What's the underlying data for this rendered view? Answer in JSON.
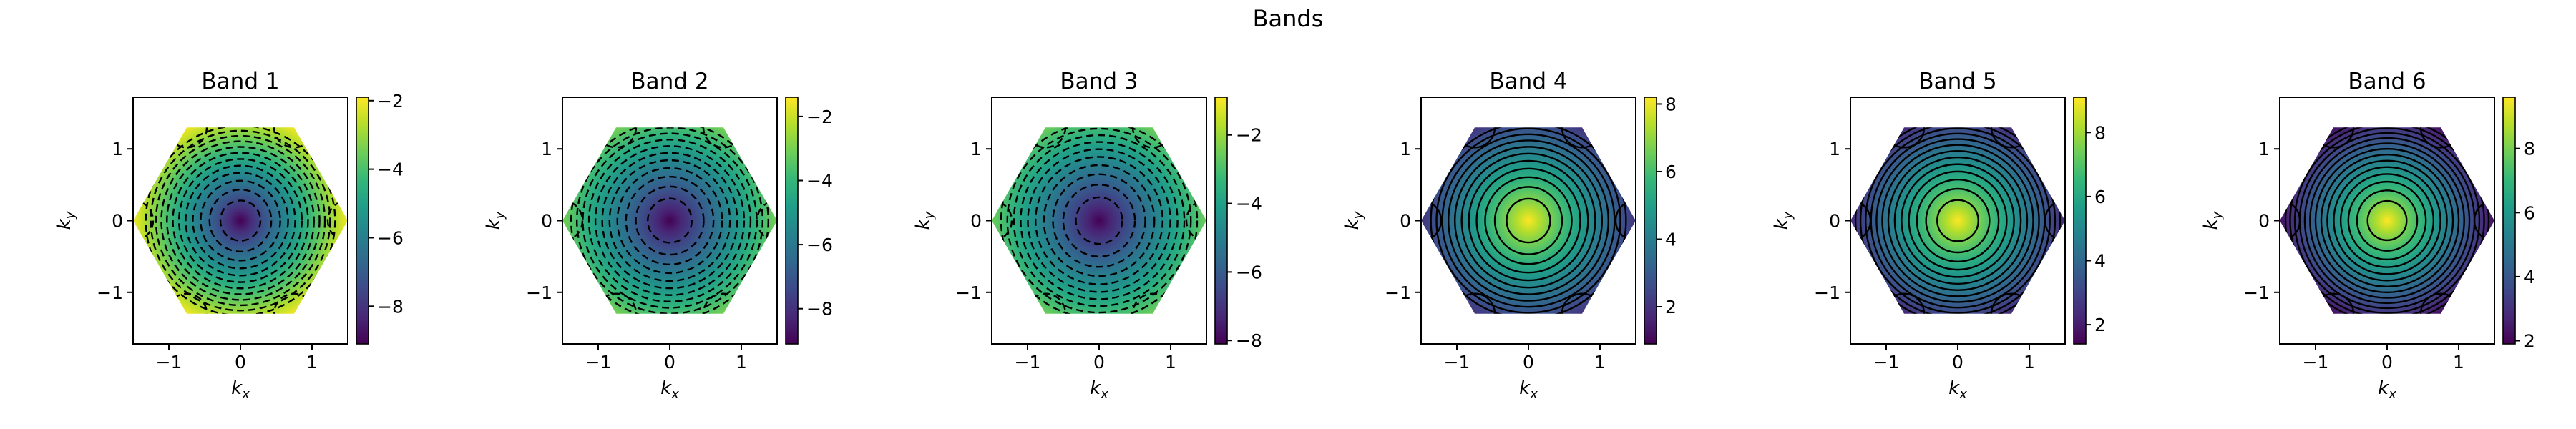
{
  "figure_title": "Bands",
  "colormap": [
    "#440154",
    "#482878",
    "#3e4989",
    "#31688e",
    "#26828e",
    "#1f9e89",
    "#35b779",
    "#6ece58",
    "#b5de2b",
    "#fde725"
  ],
  "chart_data": [
    {
      "type": "heatmap",
      "title": "Band 1",
      "xlabel": "k_x",
      "ylabel": "k_y",
      "xlim": [
        -1.5,
        1.5
      ],
      "ylim": [
        -1.72,
        1.72
      ],
      "xticks": [
        -1,
        0,
        1
      ],
      "yticks": [
        -1,
        0,
        1
      ],
      "clim": [
        -9.1,
        -1.9
      ],
      "cbar_ticks": [
        -2,
        -4,
        -6,
        -8
      ],
      "value_center": -9.1,
      "value_edge": -2.0,
      "contour_levels": [
        -8.6,
        -8.1,
        -7.6,
        -7.1,
        -6.6,
        -6.1,
        -5.6,
        -5.1,
        -4.6,
        -4.1,
        -3.6,
        -3.1
      ],
      "contour_style": "dashed"
    },
    {
      "type": "heatmap",
      "title": "Band 2",
      "xlabel": "k_x",
      "ylabel": "k_y",
      "xlim": [
        -1.5,
        1.5
      ],
      "ylim": [
        -1.72,
        1.72
      ],
      "xticks": [
        -1,
        0,
        1
      ],
      "yticks": [
        -1,
        0,
        1
      ],
      "clim": [
        -9.1,
        -1.4
      ],
      "cbar_ticks": [
        -2,
        -4,
        -6,
        -8
      ],
      "value_center": -9.1,
      "value_edge": -3.0,
      "contour_levels": [
        -8.6,
        -8.1,
        -7.6,
        -7.1,
        -6.6,
        -6.1,
        -5.6,
        -5.1,
        -4.6,
        -4.1,
        -3.6
      ],
      "contour_style": "dashed"
    },
    {
      "type": "heatmap",
      "title": "Band 3",
      "xlabel": "k_x",
      "ylabel": "k_y",
      "xlim": [
        -1.5,
        1.5
      ],
      "ylim": [
        -1.72,
        1.72
      ],
      "xticks": [
        -1,
        0,
        1
      ],
      "yticks": [
        -1,
        0,
        1
      ],
      "clim": [
        -8.1,
        -0.9
      ],
      "cbar_ticks": [
        -2,
        -4,
        -6,
        -8
      ],
      "value_center": -8.1,
      "value_edge": -2.5,
      "contour_levels": [
        -7.6,
        -7.1,
        -6.6,
        -6.1,
        -5.6,
        -5.1,
        -4.6,
        -4.1,
        -3.6,
        -3.1
      ],
      "contour_style": "dashed"
    },
    {
      "type": "heatmap",
      "title": "Band 4",
      "xlabel": "k_x",
      "ylabel": "k_y",
      "xlim": [
        -1.5,
        1.5
      ],
      "ylim": [
        -1.72,
        1.72
      ],
      "xticks": [
        -1,
        0,
        1
      ],
      "yticks": [
        -1,
        0,
        1
      ],
      "clim": [
        0.9,
        8.2
      ],
      "cbar_ticks": [
        2,
        4,
        6,
        8
      ],
      "value_center": 8.2,
      "value_edge": 2.0,
      "contour_levels": [
        7.7,
        7.2,
        6.7,
        6.2,
        5.7,
        5.2,
        4.7,
        4.2,
        3.7,
        3.2,
        2.7
      ],
      "contour_style": "solid"
    },
    {
      "type": "heatmap",
      "title": "Band 5",
      "xlabel": "k_x",
      "ylabel": "k_y",
      "xlim": [
        -1.5,
        1.5
      ],
      "ylim": [
        -1.72,
        1.72
      ],
      "xticks": [
        -1,
        0,
        1
      ],
      "yticks": [
        -1,
        0,
        1
      ],
      "clim": [
        1.4,
        9.1
      ],
      "cbar_ticks": [
        2,
        4,
        6,
        8
      ],
      "value_center": 9.1,
      "value_edge": 2.3,
      "contour_levels": [
        8.6,
        8.1,
        7.6,
        7.1,
        6.6,
        6.1,
        5.6,
        5.1,
        4.6,
        4.1,
        3.6,
        3.1,
        2.6
      ],
      "contour_style": "solid"
    },
    {
      "type": "heatmap",
      "title": "Band 6",
      "xlabel": "k_x",
      "ylabel": "k_y",
      "xlim": [
        -1.5,
        1.5
      ],
      "ylim": [
        -1.72,
        1.72
      ],
      "xticks": [
        -1,
        0,
        1
      ],
      "yticks": [
        -1,
        0,
        1
      ],
      "clim": [
        1.9,
        9.6
      ],
      "cbar_ticks": [
        2,
        4,
        6,
        8
      ],
      "value_center": 9.6,
      "value_edge": 2.2,
      "contour_levels": [
        9.1,
        8.6,
        8.1,
        7.6,
        7.1,
        6.6,
        6.1,
        5.6,
        5.1,
        4.6,
        4.1,
        3.6,
        3.1,
        2.6
      ],
      "contour_style": "solid"
    }
  ]
}
